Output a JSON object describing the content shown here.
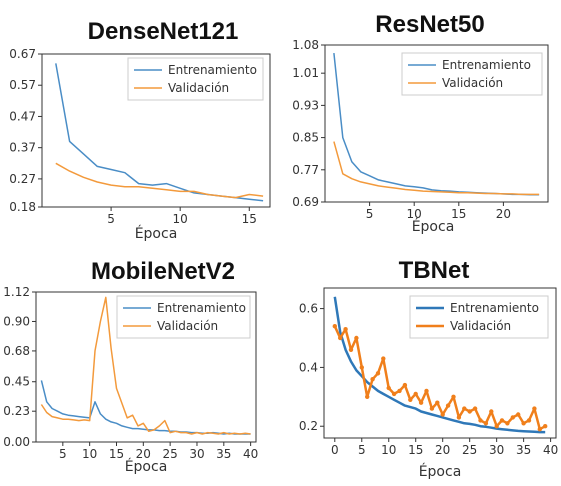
{
  "colors": {
    "train": "#4a8dc6",
    "val": "#f39a3c",
    "train_dark": "#2f78b8",
    "val_dark": "#f07f1b",
    "axis": "#333333"
  },
  "chart_data": [
    {
      "type": "line",
      "title": "DenseNet121",
      "xlabel": "Época",
      "ylabel": "",
      "xlim": [
        0,
        16.5
      ],
      "ylim": [
        0.18,
        0.67
      ],
      "xticks": [
        5,
        10,
        15
      ],
      "yticks": [
        0.18,
        0.27,
        0.37,
        0.47,
        0.57,
        0.67
      ],
      "ytick_labels": [
        "0.18",
        "0.27",
        "0.37",
        "0.47",
        "0.57",
        "0.67"
      ],
      "legend": "top-right",
      "grid": false,
      "series": [
        {
          "name": "Entrenamiento",
          "x": [
            1,
            2,
            3,
            4,
            5,
            6,
            7,
            8,
            9,
            10,
            11,
            12,
            13,
            14,
            15,
            16
          ],
          "values": [
            0.64,
            0.39,
            0.35,
            0.31,
            0.3,
            0.29,
            0.255,
            0.25,
            0.255,
            0.24,
            0.225,
            0.22,
            0.215,
            0.21,
            0.205,
            0.2
          ]
        },
        {
          "name": "Validación",
          "x": [
            1,
            2,
            3,
            4,
            5,
            6,
            7,
            8,
            9,
            10,
            11,
            12,
            13,
            14,
            15,
            16
          ],
          "values": [
            0.32,
            0.295,
            0.275,
            0.26,
            0.25,
            0.245,
            0.245,
            0.24,
            0.235,
            0.23,
            0.23,
            0.22,
            0.215,
            0.21,
            0.22,
            0.215
          ]
        }
      ]
    },
    {
      "type": "line",
      "title": "ResNet50",
      "xlabel": "Época",
      "ylabel": "",
      "xlim": [
        0,
        25
      ],
      "ylim": [
        0.69,
        1.08
      ],
      "xticks": [
        5,
        10,
        15,
        20
      ],
      "yticks": [
        0.69,
        0.77,
        0.85,
        0.93,
        1.01,
        1.08
      ],
      "ytick_labels": [
        "0.69",
        "0.77",
        "0.85",
        "0.93",
        "1.01",
        "1.08"
      ],
      "legend": "top-right",
      "grid": false,
      "series": [
        {
          "name": "Entrenamiento",
          "x": [
            1,
            2,
            3,
            4,
            5,
            6,
            7,
            8,
            9,
            10,
            11,
            12,
            13,
            14,
            15,
            16,
            17,
            18,
            19,
            20,
            21,
            22,
            23,
            24
          ],
          "values": [
            1.06,
            0.85,
            0.79,
            0.765,
            0.755,
            0.745,
            0.74,
            0.735,
            0.73,
            0.728,
            0.725,
            0.72,
            0.718,
            0.717,
            0.715,
            0.714,
            0.713,
            0.712,
            0.711,
            0.71,
            0.709,
            0.709,
            0.708,
            0.708
          ]
        },
        {
          "name": "Validación",
          "x": [
            1,
            2,
            3,
            4,
            5,
            6,
            7,
            8,
            9,
            10,
            11,
            12,
            13,
            14,
            15,
            16,
            17,
            18,
            19,
            20,
            21,
            22,
            23,
            24
          ],
          "values": [
            0.84,
            0.76,
            0.748,
            0.74,
            0.735,
            0.73,
            0.727,
            0.724,
            0.721,
            0.719,
            0.717,
            0.716,
            0.715,
            0.714,
            0.713,
            0.713,
            0.712,
            0.711,
            0.711,
            0.71,
            0.71,
            0.709,
            0.709,
            0.709
          ]
        }
      ]
    },
    {
      "type": "line",
      "title": "MobileNetV2",
      "xlabel": "Época",
      "ylabel": "",
      "xlim": [
        0,
        41
      ],
      "ylim": [
        0,
        1.12
      ],
      "xticks": [
        5,
        10,
        15,
        20,
        25,
        30,
        35,
        40
      ],
      "yticks": [
        0,
        0.23,
        0.45,
        0.68,
        0.9,
        1.12
      ],
      "ytick_labels": [
        "0.00",
        "0.23",
        "0.45",
        "0.68",
        "0.90",
        "1.12"
      ],
      "legend": "top-right",
      "grid": false,
      "series": [
        {
          "name": "Entrenamiento",
          "x": [
            1,
            2,
            3,
            4,
            5,
            6,
            7,
            8,
            9,
            10,
            11,
            12,
            13,
            14,
            15,
            16,
            17,
            18,
            19,
            20,
            21,
            22,
            23,
            24,
            25,
            26,
            27,
            28,
            29,
            30,
            31,
            32,
            33,
            34,
            35,
            36,
            37,
            38,
            39,
            40
          ],
          "values": [
            0.46,
            0.3,
            0.25,
            0.23,
            0.21,
            0.2,
            0.195,
            0.19,
            0.185,
            0.18,
            0.3,
            0.21,
            0.17,
            0.15,
            0.14,
            0.12,
            0.11,
            0.1,
            0.1,
            0.095,
            0.09,
            0.09,
            0.085,
            0.085,
            0.08,
            0.08,
            0.075,
            0.075,
            0.07,
            0.07,
            0.065,
            0.065,
            0.07,
            0.065,
            0.06,
            0.065,
            0.06,
            0.06,
            0.06,
            0.06
          ]
        },
        {
          "name": "Validación",
          "x": [
            1,
            2,
            3,
            4,
            5,
            6,
            7,
            8,
            9,
            10,
            11,
            12,
            13,
            14,
            15,
            16,
            17,
            18,
            19,
            20,
            21,
            22,
            23,
            24,
            25,
            26,
            27,
            28,
            29,
            30,
            31,
            32,
            33,
            34,
            35,
            36,
            37,
            38,
            39,
            40
          ],
          "values": [
            0.28,
            0.22,
            0.19,
            0.18,
            0.17,
            0.17,
            0.165,
            0.16,
            0.165,
            0.16,
            0.68,
            0.9,
            1.08,
            0.7,
            0.4,
            0.29,
            0.18,
            0.2,
            0.12,
            0.14,
            0.08,
            0.09,
            0.12,
            0.16,
            0.07,
            0.08,
            0.07,
            0.07,
            0.06,
            0.07,
            0.06,
            0.07,
            0.065,
            0.06,
            0.07,
            0.06,
            0.065,
            0.06,
            0.065,
            0.06
          ]
        }
      ]
    },
    {
      "type": "line",
      "title": "TBNet",
      "xlabel": "Época",
      "ylabel": "",
      "xlim": [
        -2,
        41
      ],
      "ylim": [
        0.16,
        0.67
      ],
      "xticks": [
        0,
        5,
        10,
        15,
        20,
        25,
        30,
        35,
        40
      ],
      "yticks": [
        0.2,
        0.4,
        0.6
      ],
      "ytick_labels": [
        "0.2",
        "0.4",
        "0.6"
      ],
      "legend": "top-right",
      "grid": false,
      "series": [
        {
          "name": "Entrenamiento",
          "x": [
            0,
            1,
            2,
            3,
            4,
            5,
            6,
            7,
            8,
            9,
            10,
            11,
            12,
            13,
            14,
            15,
            16,
            17,
            18,
            19,
            20,
            21,
            22,
            23,
            24,
            25,
            26,
            27,
            28,
            29,
            30,
            31,
            32,
            33,
            34,
            35,
            36,
            37,
            38,
            39
          ],
          "values": [
            0.64,
            0.52,
            0.46,
            0.42,
            0.39,
            0.37,
            0.35,
            0.335,
            0.32,
            0.31,
            0.3,
            0.29,
            0.28,
            0.27,
            0.265,
            0.26,
            0.25,
            0.245,
            0.24,
            0.235,
            0.23,
            0.225,
            0.22,
            0.215,
            0.21,
            0.208,
            0.205,
            0.2,
            0.198,
            0.195,
            0.192,
            0.19,
            0.188,
            0.186,
            0.184,
            0.183,
            0.182,
            0.181,
            0.18,
            0.18
          ]
        },
        {
          "name": "Validación",
          "x": [
            0,
            1,
            2,
            3,
            4,
            5,
            6,
            7,
            8,
            9,
            10,
            11,
            12,
            13,
            14,
            15,
            16,
            17,
            18,
            19,
            20,
            21,
            22,
            23,
            24,
            25,
            26,
            27,
            28,
            29,
            30,
            31,
            32,
            33,
            34,
            35,
            36,
            37,
            38,
            39
          ],
          "values": [
            0.54,
            0.5,
            0.53,
            0.46,
            0.5,
            0.4,
            0.3,
            0.36,
            0.38,
            0.43,
            0.33,
            0.31,
            0.32,
            0.34,
            0.29,
            0.31,
            0.28,
            0.32,
            0.26,
            0.28,
            0.24,
            0.27,
            0.3,
            0.23,
            0.26,
            0.25,
            0.26,
            0.22,
            0.21,
            0.25,
            0.2,
            0.22,
            0.21,
            0.23,
            0.24,
            0.21,
            0.22,
            0.26,
            0.19,
            0.2
          ]
        }
      ]
    }
  ]
}
